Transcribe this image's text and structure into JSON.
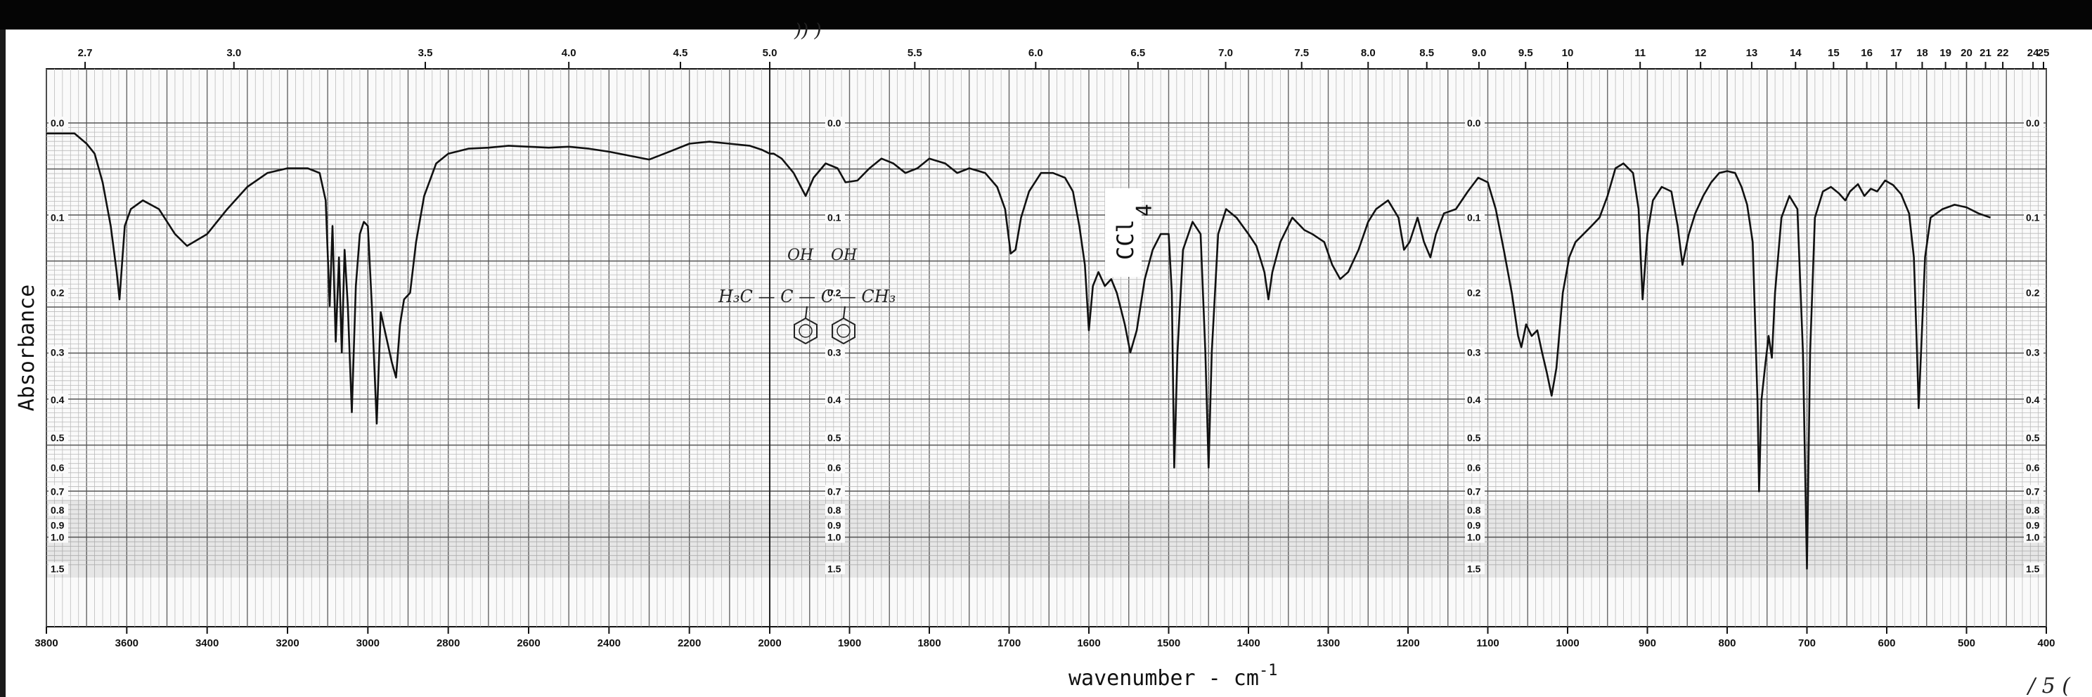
{
  "chart_data": {
    "type": "line",
    "title": "",
    "xlabel": "wavenumber - cm",
    "xlabel_superscript": "-1",
    "ylabel": "Absorbance",
    "solvent_label": "CCl",
    "solvent_subscript": "4",
    "x_axis_bottom": {
      "unit": "cm-1",
      "segments": [
        {
          "range": [
            3800,
            2000
          ],
          "ticks": [
            3800,
            3600,
            3400,
            3200,
            3000,
            2800,
            2600,
            2400,
            2200,
            2000
          ]
        },
        {
          "range": [
            2000,
            400
          ],
          "ticks": [
            1900,
            1800,
            1700,
            1600,
            1500,
            1400,
            1300,
            1200,
            1100,
            1000,
            900,
            800,
            700,
            600,
            500,
            400
          ]
        }
      ],
      "reversed": true
    },
    "x_axis_top": {
      "unit": "micrometer",
      "tick_labels": [
        "2.7",
        "3.0",
        "3.5",
        "4.0",
        "4.5",
        "5.0",
        "5.5",
        "6.0",
        "6.5",
        "7.0",
        "7.5",
        "8.0",
        "8.5",
        "9.0",
        "9.5",
        "10",
        "11",
        "12",
        "13",
        "14",
        "15",
        "16",
        "17",
        "18",
        "19",
        "20",
        "21",
        "22",
        "24",
        "25"
      ]
    },
    "y_axis": {
      "scale": "absorbance (log transmittance)",
      "reversed": true,
      "ylim": [
        0.0,
        1.5
      ],
      "tick_labels": [
        "0.0",
        "0.1",
        "0.2",
        "0.3",
        "0.4",
        "0.5",
        "0.6",
        "0.7",
        "0.8",
        "0.9",
        "1.0",
        "1.5"
      ]
    },
    "grid": true,
    "series": [
      {
        "points": [
          [
            3800,
            0.01
          ],
          [
            3730,
            0.01
          ],
          [
            3700,
            0.02
          ],
          [
            3680,
            0.03
          ],
          [
            3660,
            0.06
          ],
          [
            3640,
            0.11
          ],
          [
            3625,
            0.17
          ],
          [
            3618,
            0.21
          ],
          [
            3612,
            0.16
          ],
          [
            3605,
            0.11
          ],
          [
            3590,
            0.09
          ],
          [
            3560,
            0.08
          ],
          [
            3520,
            0.09
          ],
          [
            3480,
            0.12
          ],
          [
            3450,
            0.135
          ],
          [
            3400,
            0.12
          ],
          [
            3350,
            0.09
          ],
          [
            3300,
            0.065
          ],
          [
            3250,
            0.05
          ],
          [
            3200,
            0.045
          ],
          [
            3150,
            0.045
          ],
          [
            3120,
            0.05
          ],
          [
            3105,
            0.08
          ],
          [
            3095,
            0.22
          ],
          [
            3088,
            0.11
          ],
          [
            3080,
            0.28
          ],
          [
            3072,
            0.15
          ],
          [
            3065,
            0.3
          ],
          [
            3058,
            0.14
          ],
          [
            3050,
            0.22
          ],
          [
            3040,
            0.43
          ],
          [
            3030,
            0.19
          ],
          [
            3020,
            0.12
          ],
          [
            3010,
            0.105
          ],
          [
            3000,
            0.11
          ],
          [
            2990,
            0.22
          ],
          [
            2978,
            0.46
          ],
          [
            2968,
            0.23
          ],
          [
            2955,
            0.27
          ],
          [
            2940,
            0.32
          ],
          [
            2930,
            0.35
          ],
          [
            2920,
            0.25
          ],
          [
            2910,
            0.21
          ],
          [
            2895,
            0.2
          ],
          [
            2880,
            0.13
          ],
          [
            2860,
            0.075
          ],
          [
            2830,
            0.04
          ],
          [
            2800,
            0.03
          ],
          [
            2750,
            0.025
          ],
          [
            2700,
            0.024
          ],
          [
            2650,
            0.022
          ],
          [
            2600,
            0.023
          ],
          [
            2550,
            0.024
          ],
          [
            2500,
            0.023
          ],
          [
            2450,
            0.025
          ],
          [
            2400,
            0.028
          ],
          [
            2350,
            0.032
          ],
          [
            2300,
            0.036
          ],
          [
            2250,
            0.028
          ],
          [
            2200,
            0.02
          ],
          [
            2150,
            0.018
          ],
          [
            2100,
            0.02
          ],
          [
            2050,
            0.022
          ],
          [
            2020,
            0.026
          ],
          [
            2000,
            0.03
          ],
          [
            1995,
            0.03
          ],
          [
            1985,
            0.035
          ],
          [
            1970,
            0.05
          ],
          [
            1955,
            0.075
          ],
          [
            1945,
            0.055
          ],
          [
            1930,
            0.04
          ],
          [
            1915,
            0.045
          ],
          [
            1905,
            0.06
          ],
          [
            1890,
            0.058
          ],
          [
            1875,
            0.045
          ],
          [
            1860,
            0.035
          ],
          [
            1845,
            0.04
          ],
          [
            1830,
            0.05
          ],
          [
            1815,
            0.045
          ],
          [
            1800,
            0.035
          ],
          [
            1780,
            0.04
          ],
          [
            1765,
            0.05
          ],
          [
            1750,
            0.045
          ],
          [
            1730,
            0.05
          ],
          [
            1715,
            0.065
          ],
          [
            1705,
            0.09
          ],
          [
            1698,
            0.145
          ],
          [
            1692,
            0.14
          ],
          [
            1685,
            0.1
          ],
          [
            1675,
            0.07
          ],
          [
            1660,
            0.05
          ],
          [
            1645,
            0.05
          ],
          [
            1630,
            0.055
          ],
          [
            1620,
            0.07
          ],
          [
            1612,
            0.11
          ],
          [
            1605,
            0.16
          ],
          [
            1600,
            0.26
          ],
          [
            1595,
            0.19
          ],
          [
            1588,
            0.17
          ],
          [
            1580,
            0.19
          ],
          [
            1572,
            0.18
          ],
          [
            1565,
            0.2
          ],
          [
            1555,
            0.25
          ],
          [
            1548,
            0.3
          ],
          [
            1540,
            0.26
          ],
          [
            1530,
            0.18
          ],
          [
            1520,
            0.14
          ],
          [
            1510,
            0.12
          ],
          [
            1500,
            0.12
          ],
          [
            1496,
            0.2
          ],
          [
            1493,
            0.6
          ],
          [
            1489,
            0.3
          ],
          [
            1482,
            0.14
          ],
          [
            1470,
            0.105
          ],
          [
            1460,
            0.12
          ],
          [
            1454,
            0.3
          ],
          [
            1450,
            0.6
          ],
          [
            1446,
            0.3
          ],
          [
            1438,
            0.12
          ],
          [
            1428,
            0.09
          ],
          [
            1415,
            0.1
          ],
          [
            1400,
            0.12
          ],
          [
            1390,
            0.135
          ],
          [
            1380,
            0.17
          ],
          [
            1375,
            0.21
          ],
          [
            1370,
            0.17
          ],
          [
            1360,
            0.13
          ],
          [
            1345,
            0.1
          ],
          [
            1330,
            0.115
          ],
          [
            1320,
            0.12
          ],
          [
            1305,
            0.13
          ],
          [
            1295,
            0.16
          ],
          [
            1285,
            0.18
          ],
          [
            1275,
            0.17
          ],
          [
            1262,
            0.14
          ],
          [
            1250,
            0.105
          ],
          [
            1240,
            0.09
          ],
          [
            1225,
            0.08
          ],
          [
            1212,
            0.1
          ],
          [
            1205,
            0.14
          ],
          [
            1198,
            0.13
          ],
          [
            1188,
            0.1
          ],
          [
            1180,
            0.13
          ],
          [
            1172,
            0.15
          ],
          [
            1165,
            0.12
          ],
          [
            1155,
            0.095
          ],
          [
            1140,
            0.09
          ],
          [
            1125,
            0.07
          ],
          [
            1112,
            0.055
          ],
          [
            1100,
            0.06
          ],
          [
            1090,
            0.09
          ],
          [
            1080,
            0.14
          ],
          [
            1070,
            0.2
          ],
          [
            1062,
            0.27
          ],
          [
            1058,
            0.29
          ],
          [
            1052,
            0.25
          ],
          [
            1045,
            0.27
          ],
          [
            1038,
            0.26
          ],
          [
            1032,
            0.3
          ],
          [
            1026,
            0.34
          ],
          [
            1020,
            0.39
          ],
          [
            1014,
            0.33
          ],
          [
            1006,
            0.2
          ],
          [
            998,
            0.15
          ],
          [
            990,
            0.13
          ],
          [
            980,
            0.12
          ],
          [
            970,
            0.11
          ],
          [
            960,
            0.1
          ],
          [
            950,
            0.075
          ],
          [
            940,
            0.045
          ],
          [
            930,
            0.04
          ],
          [
            918,
            0.05
          ],
          [
            911,
            0.09
          ],
          [
            906,
            0.21
          ],
          [
            900,
            0.12
          ],
          [
            893,
            0.08
          ],
          [
            882,
            0.065
          ],
          [
            870,
            0.07
          ],
          [
            862,
            0.11
          ],
          [
            856,
            0.16
          ],
          [
            848,
            0.12
          ],
          [
            840,
            0.095
          ],
          [
            830,
            0.075
          ],
          [
            820,
            0.06
          ],
          [
            810,
            0.05
          ],
          [
            800,
            0.048
          ],
          [
            790,
            0.05
          ],
          [
            782,
            0.065
          ],
          [
            775,
            0.085
          ],
          [
            768,
            0.13
          ],
          [
            762,
            0.4
          ],
          [
            760,
            0.7
          ],
          [
            757,
            0.4
          ],
          [
            752,
            0.32
          ],
          [
            748,
            0.27
          ],
          [
            744,
            0.31
          ],
          [
            740,
            0.2
          ],
          [
            732,
            0.1
          ],
          [
            722,
            0.075
          ],
          [
            712,
            0.09
          ],
          [
            705,
            0.3
          ],
          [
            700,
            1.5
          ],
          [
            696,
            0.3
          ],
          [
            690,
            0.1
          ],
          [
            680,
            0.07
          ],
          [
            670,
            0.065
          ],
          [
            660,
            0.072
          ],
          [
            652,
            0.08
          ],
          [
            646,
            0.07
          ],
          [
            636,
            0.062
          ],
          [
            628,
            0.075
          ],
          [
            620,
            0.067
          ],
          [
            612,
            0.07
          ],
          [
            602,
            0.058
          ],
          [
            592,
            0.063
          ],
          [
            582,
            0.073
          ],
          [
            572,
            0.095
          ],
          [
            566,
            0.15
          ],
          [
            562,
            0.3
          ],
          [
            560,
            0.42
          ],
          [
            557,
            0.3
          ],
          [
            552,
            0.15
          ],
          [
            545,
            0.1
          ],
          [
            530,
            0.09
          ],
          [
            515,
            0.085
          ],
          [
            500,
            0.088
          ],
          [
            485,
            0.095
          ],
          [
            470,
            0.1
          ]
        ]
      }
    ]
  },
  "annotations": {
    "handwriting_top": ")) )",
    "structure_oh_1": "OH",
    "structure_oh_2": "OH",
    "structure_formula": "H₃C — C — C — CH₃",
    "corner_scrawl": "/ 5 ("
  }
}
